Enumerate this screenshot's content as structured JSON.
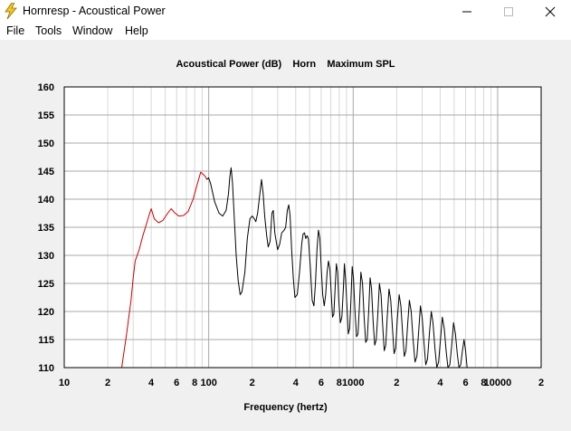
{
  "window": {
    "title": "Hornresp - Acoustical Power",
    "icon": "lightning-icon"
  },
  "menu": [
    "File",
    "Tools",
    "Window",
    "Help"
  ],
  "chart_data": {
    "type": "line",
    "title": "Acoustical Power (dB)    Horn    Maximum SPL",
    "xlabel": "Frequency (hertz)",
    "ylabel": "",
    "x_scale": "log",
    "xlim": [
      10,
      20000
    ],
    "ylim": [
      110,
      160
    ],
    "grid": true,
    "y_ticks": [
      "110",
      "115",
      "120",
      "125",
      "130",
      "135",
      "140",
      "145",
      "150",
      "155",
      "160"
    ],
    "x_ticks": [
      {
        "value": 10,
        "label": "10"
      },
      {
        "value": 20,
        "label": "2"
      },
      {
        "value": 40,
        "label": "4"
      },
      {
        "value": 60,
        "label": "6"
      },
      {
        "value": 80,
        "label": "8"
      },
      {
        "value": 100,
        "label": "100"
      },
      {
        "value": 200,
        "label": "2"
      },
      {
        "value": 400,
        "label": "4"
      },
      {
        "value": 600,
        "label": "6"
      },
      {
        "value": 800,
        "label": "8"
      },
      {
        "value": 1000,
        "label": "1000"
      },
      {
        "value": 2000,
        "label": "2"
      },
      {
        "value": 4000,
        "label": "4"
      },
      {
        "value": 6000,
        "label": "6"
      },
      {
        "value": 8000,
        "label": "8"
      },
      {
        "value": 10000,
        "label": "10000"
      },
      {
        "value": 20000,
        "label": "2"
      }
    ],
    "series": [
      {
        "color": "#cc0000",
        "points": [
          [
            25,
            110
          ],
          [
            27,
            116
          ],
          [
            29,
            122
          ],
          [
            30,
            126
          ],
          [
            31,
            129
          ],
          [
            33,
            131
          ],
          [
            35,
            133.5
          ],
          [
            37,
            135.5
          ],
          [
            39,
            137.5
          ],
          [
            40,
            138.3
          ],
          [
            42,
            136.5
          ],
          [
            45,
            135.8
          ],
          [
            48,
            136.2
          ],
          [
            52,
            137.5
          ],
          [
            55,
            138.3
          ],
          [
            58,
            137.6
          ],
          [
            62,
            137
          ],
          [
            67,
            137.1
          ],
          [
            72,
            137.8
          ],
          [
            78,
            140
          ],
          [
            83,
            142.5
          ],
          [
            88,
            144.8
          ],
          [
            91,
            144.5
          ],
          [
            95,
            144
          ],
          [
            97,
            143.5
          ]
        ]
      },
      {
        "color": "#000000",
        "points": [
          [
            97,
            143.5
          ],
          [
            100,
            143.8
          ],
          [
            103,
            142.8
          ],
          [
            110,
            139.5
          ],
          [
            118,
            137.5
          ],
          [
            125,
            137
          ],
          [
            132,
            138
          ],
          [
            137,
            141
          ],
          [
            140,
            144
          ],
          [
            143,
            145.6
          ],
          [
            146,
            143
          ],
          [
            150,
            137
          ],
          [
            155,
            130
          ],
          [
            160,
            125.5
          ],
          [
            165,
            123
          ],
          [
            170,
            123.5
          ],
          [
            178,
            127
          ],
          [
            185,
            133
          ],
          [
            193,
            136.5
          ],
          [
            200,
            137
          ],
          [
            207,
            136.5
          ],
          [
            212,
            136
          ],
          [
            218,
            137.5
          ],
          [
            226,
            141
          ],
          [
            232,
            143.5
          ],
          [
            238,
            141
          ],
          [
            244,
            137
          ],
          [
            252,
            133.5
          ],
          [
            258,
            131.5
          ],
          [
            266,
            132.5
          ],
          [
            270,
            135
          ],
          [
            274,
            137.5
          ],
          [
            280,
            138
          ],
          [
            287,
            134
          ],
          [
            292,
            132.8
          ],
          [
            300,
            131
          ],
          [
            310,
            132
          ],
          [
            320,
            134
          ],
          [
            333,
            134.5
          ],
          [
            341,
            135
          ],
          [
            350,
            138
          ],
          [
            358,
            139
          ],
          [
            366,
            137
          ],
          [
            375,
            131
          ],
          [
            385,
            126
          ],
          [
            395,
            122.5
          ],
          [
            410,
            123
          ],
          [
            425,
            127
          ],
          [
            440,
            132
          ],
          [
            450,
            133.8
          ],
          [
            460,
            134
          ],
          [
            470,
            133
          ],
          [
            480,
            133.5
          ],
          [
            490,
            133
          ],
          [
            505,
            128
          ],
          [
            520,
            122
          ],
          [
            535,
            121
          ],
          [
            548,
            125
          ],
          [
            562,
            131
          ],
          [
            575,
            134.5
          ],
          [
            588,
            133
          ],
          [
            600,
            128
          ],
          [
            615,
            123
          ],
          [
            630,
            121
          ],
          [
            645,
            123
          ],
          [
            660,
            127
          ],
          [
            675,
            129
          ],
          [
            690,
            127.5
          ],
          [
            705,
            123
          ],
          [
            720,
            119
          ],
          [
            735,
            119.5
          ],
          [
            750,
            124
          ],
          [
            765,
            128.5
          ],
          [
            780,
            127
          ],
          [
            795,
            122
          ],
          [
            815,
            118
          ],
          [
            835,
            119
          ],
          [
            855,
            124
          ],
          [
            870,
            128.5
          ],
          [
            885,
            126
          ],
          [
            905,
            121
          ],
          [
            925,
            116
          ],
          [
            945,
            117
          ],
          [
            965,
            122
          ],
          [
            985,
            128
          ],
          [
            1005,
            126
          ],
          [
            1030,
            120
          ],
          [
            1055,
            115.5
          ],
          [
            1080,
            116
          ],
          [
            1105,
            121
          ],
          [
            1130,
            127
          ],
          [
            1160,
            125
          ],
          [
            1190,
            119
          ],
          [
            1220,
            114.5
          ],
          [
            1250,
            115
          ],
          [
            1280,
            120
          ],
          [
            1310,
            126
          ],
          [
            1340,
            124
          ],
          [
            1375,
            118
          ],
          [
            1410,
            114
          ],
          [
            1445,
            115
          ],
          [
            1480,
            119.5
          ],
          [
            1520,
            125
          ],
          [
            1560,
            123
          ],
          [
            1600,
            117.5
          ],
          [
            1640,
            113
          ],
          [
            1680,
            114
          ],
          [
            1720,
            119
          ],
          [
            1770,
            124
          ],
          [
            1820,
            122
          ],
          [
            1870,
            117
          ],
          [
            1920,
            112.5
          ],
          [
            1970,
            113.5
          ],
          [
            2020,
            118.5
          ],
          [
            2080,
            123
          ],
          [
            2140,
            121
          ],
          [
            2200,
            116
          ],
          [
            2260,
            112
          ],
          [
            2320,
            113
          ],
          [
            2380,
            117.5
          ],
          [
            2450,
            122
          ],
          [
            2520,
            120
          ],
          [
            2600,
            115
          ],
          [
            2680,
            111
          ],
          [
            2760,
            112
          ],
          [
            2840,
            116.5
          ],
          [
            2920,
            121
          ],
          [
            3000,
            119
          ],
          [
            3090,
            114.5
          ],
          [
            3180,
            110.5
          ],
          [
            3270,
            111.5
          ],
          [
            3370,
            116
          ],
          [
            3470,
            120
          ],
          [
            3570,
            118
          ],
          [
            3680,
            113.5
          ],
          [
            3790,
            110
          ],
          [
            3900,
            111
          ],
          [
            4020,
            115
          ],
          [
            4140,
            119
          ],
          [
            4270,
            117
          ],
          [
            4400,
            113
          ],
          [
            4530,
            110
          ],
          [
            4670,
            110.5
          ],
          [
            4810,
            114
          ],
          [
            4950,
            118
          ],
          [
            5100,
            116
          ],
          [
            5250,
            112.5
          ],
          [
            5400,
            110
          ],
          [
            5550,
            110.5
          ],
          [
            5700,
            113
          ],
          [
            5850,
            115
          ],
          [
            6000,
            113
          ],
          [
            6150,
            110
          ]
        ]
      }
    ]
  }
}
